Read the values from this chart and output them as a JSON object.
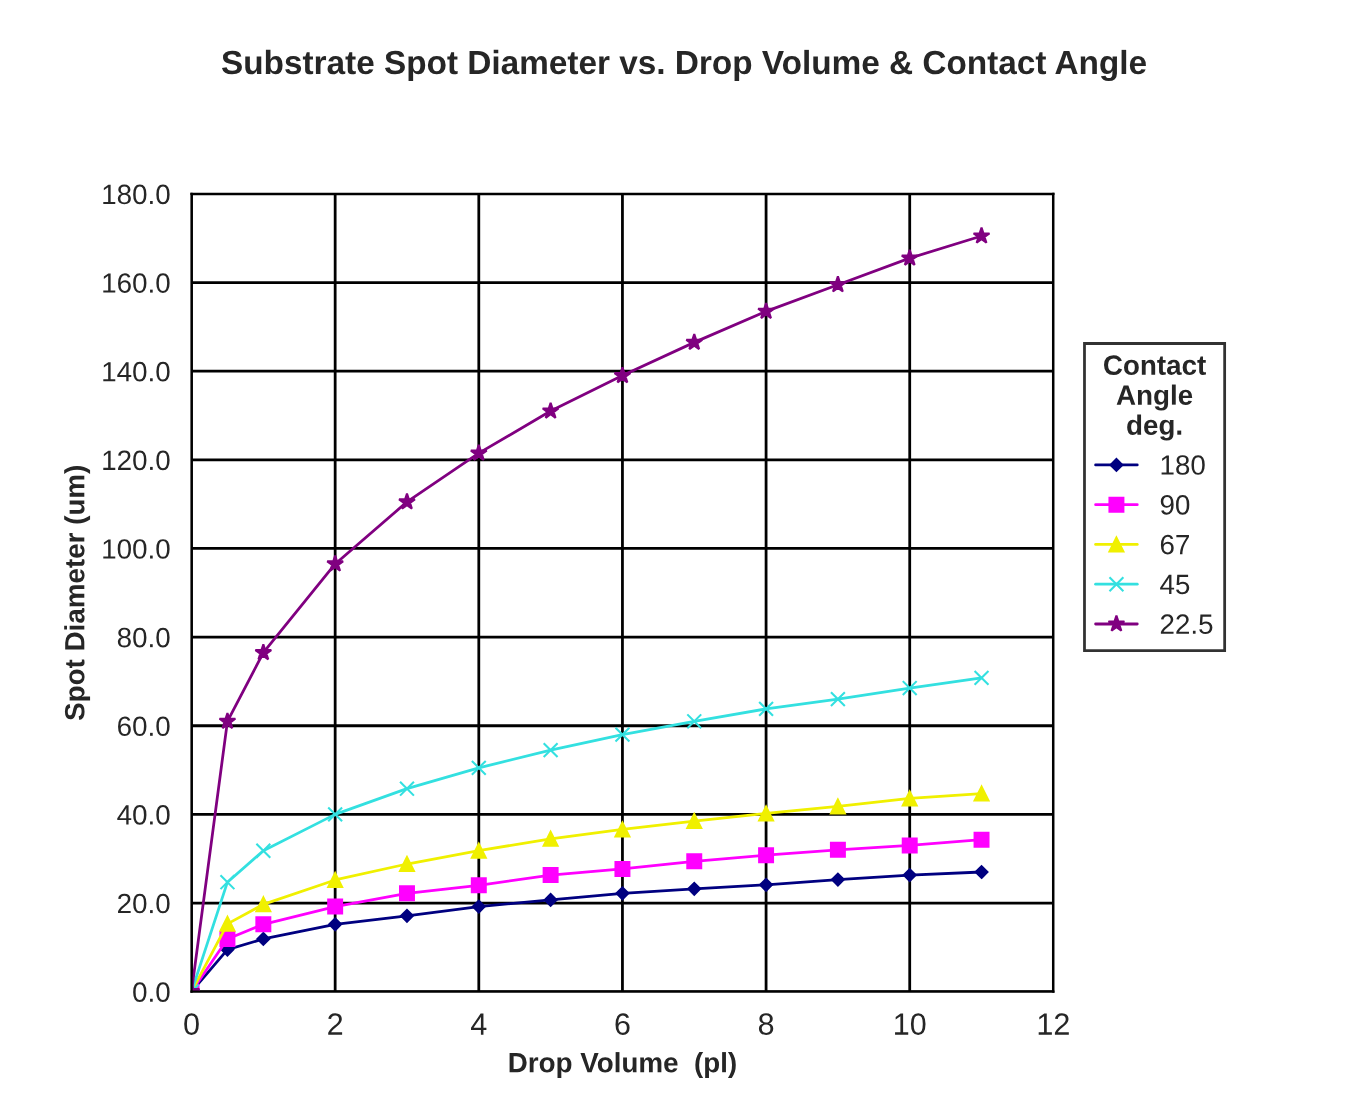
{
  "chart_data": {
    "type": "line",
    "title": "Substrate Spot Diameter vs. Drop Volume & Contact Angle",
    "xlabel": "Drop Volume  (pl)",
    "ylabel": "Spot Diameter (um)",
    "legend_title": "Contact\nAngle\ndeg.",
    "x": [
      0,
      0.5,
      1,
      2,
      3,
      4,
      5,
      6,
      7,
      8,
      9,
      10,
      11
    ],
    "series": [
      {
        "name": "180",
        "color": "#000080",
        "marker": "diamond",
        "values": [
          0,
          9.5,
          11.9,
          15.2,
          17.1,
          19.2,
          20.7,
          22.2,
          23.2,
          24.1,
          25.3,
          26.3,
          27
        ]
      },
      {
        "name": "90",
        "color": "#ff00ff",
        "marker": "square",
        "values": [
          0,
          11.9,
          15.2,
          19.2,
          22.2,
          24,
          26.3,
          27.7,
          29.4,
          30.8,
          32,
          33,
          34.3
        ]
      },
      {
        "name": "67",
        "color": "#f0f000",
        "marker": "triangle",
        "values": [
          0,
          15.3,
          19.7,
          25.2,
          28.8,
          31.8,
          34.5,
          36.6,
          38.5,
          40.2,
          41.8,
          43.6,
          44.7
        ]
      },
      {
        "name": "45",
        "color": "#33e0e0",
        "marker": "cross",
        "values": [
          0,
          24.7,
          31.8,
          40,
          45.8,
          50.5,
          54.5,
          58,
          61,
          63.8,
          66,
          68.5,
          70.8
        ]
      },
      {
        "name": "22.5",
        "color": "#800080",
        "marker": "star",
        "values": [
          0,
          61,
          76.5,
          96.5,
          110.5,
          121.5,
          131,
          139,
          146.5,
          153.5,
          159.5,
          165.5,
          170.5
        ]
      }
    ],
    "xlim": [
      0,
      12
    ],
    "xticks": [
      0,
      2,
      4,
      6,
      8,
      10,
      12
    ],
    "ylim": [
      0,
      180
    ],
    "yticks": [
      {
        "value": 0,
        "label": "0.0"
      },
      {
        "value": 20,
        "label": "20.0"
      },
      {
        "value": 40,
        "label": "40.0"
      },
      {
        "value": 60,
        "label": "60.0"
      },
      {
        "value": 80,
        "label": "80.0"
      },
      {
        "value": 100,
        "label": "100.0"
      },
      {
        "value": 120,
        "label": "120.0"
      },
      {
        "value": 140,
        "label": "140.0"
      },
      {
        "value": 160,
        "label": "160.0"
      },
      {
        "value": 180,
        "label": "180.0"
      }
    ],
    "grid": true,
    "legend": "right",
    "line_style": "solid"
  }
}
